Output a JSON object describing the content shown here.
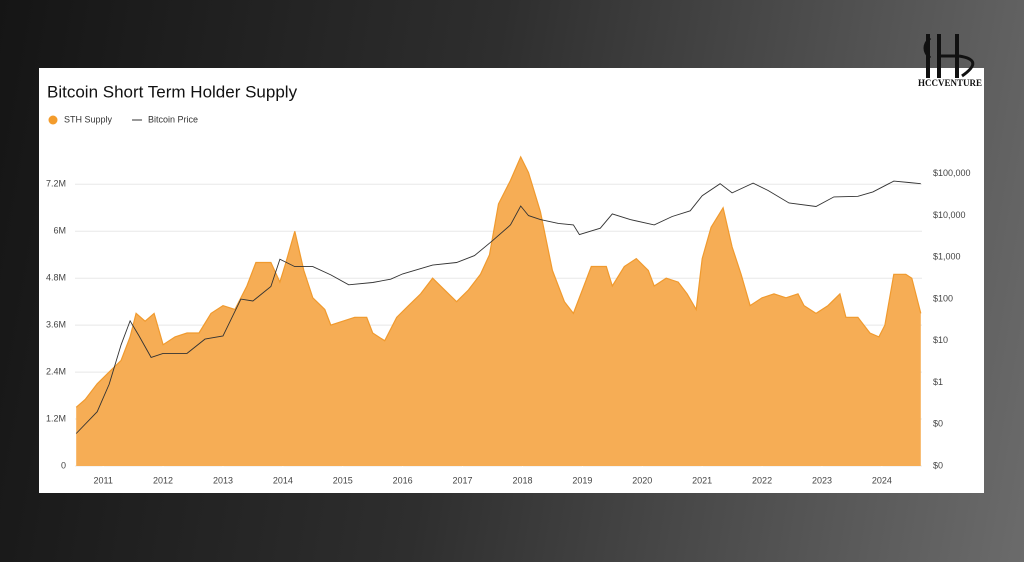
{
  "logo": "HCCVENTURE",
  "chart_data": {
    "type": "area",
    "title": "Bitcoin Short Term Holder Supply",
    "xlim": [
      2010.53,
      2024.67
    ],
    "xticks": [
      2011,
      2012,
      2013,
      2014,
      2015,
      2016,
      2017,
      2018,
      2019,
      2020,
      2021,
      2022,
      2023,
      2024
    ],
    "ylim": [
      0,
      8000000
    ],
    "yticks": [
      0,
      {
        "value": 1200000,
        "label": "1.2M"
      },
      {
        "value": 2400000,
        "label": "2.4M"
      },
      {
        "value": 3600000,
        "label": "3.6M"
      },
      {
        "value": 4800000,
        "label": "4.8M"
      },
      {
        "value": 6000000,
        "label": "6M"
      },
      {
        "value": 7200000,
        "label": "7.2M"
      }
    ],
    "y2lim": [
      0.01,
      316228
    ],
    "y2log": true,
    "y2ticks": [
      {
        "value": 0.01,
        "label": "$0"
      },
      {
        "value": 0.1,
        "label": "$0"
      },
      {
        "value": 1,
        "label": "$1"
      },
      {
        "value": 10,
        "label": "$10"
      },
      {
        "value": 100,
        "label": "$100"
      },
      {
        "value": 1000,
        "label": "$1,000"
      },
      {
        "value": 10000,
        "label": "$10,000"
      },
      {
        "value": 100000,
        "label": "$100,000"
      }
    ],
    "grid": true,
    "legend": "top-left",
    "series": [
      {
        "name": "STH Supply",
        "color": "#f6ad55",
        "kind": "area",
        "x": [
          2010.55,
          2010.7,
          2010.9,
          2011.1,
          2011.3,
          2011.45,
          2011.55,
          2011.7,
          2011.85,
          2012.0,
          2012.2,
          2012.4,
          2012.6,
          2012.8,
          2013.0,
          2013.2,
          2013.4,
          2013.55,
          2013.8,
          2013.95,
          2014.05,
          2014.2,
          2014.35,
          2014.5,
          2014.7,
          2014.8,
          2015.0,
          2015.2,
          2015.4,
          2015.5,
          2015.7,
          2015.9,
          2016.1,
          2016.3,
          2016.5,
          2016.7,
          2016.9,
          2017.1,
          2017.3,
          2017.45,
          2017.6,
          2017.8,
          2017.97,
          2018.1,
          2018.3,
          2018.5,
          2018.7,
          2018.85,
          2019.0,
          2019.15,
          2019.4,
          2019.5,
          2019.7,
          2019.9,
          2020.1,
          2020.2,
          2020.4,
          2020.6,
          2020.75,
          2020.9,
          2021.0,
          2021.15,
          2021.35,
          2021.5,
          2021.65,
          2021.8,
          2022.0,
          2022.2,
          2022.4,
          2022.6,
          2022.7,
          2022.9,
          2023.1,
          2023.3,
          2023.4,
          2023.6,
          2023.8,
          2023.95,
          2024.05,
          2024.2,
          2024.4,
          2024.5,
          2024.65
        ],
        "values": [
          1500000,
          1700000,
          2100000,
          2400000,
          2700000,
          3300000,
          3900000,
          3700000,
          3900000,
          3100000,
          3300000,
          3400000,
          3400000,
          3900000,
          4100000,
          4000000,
          4600000,
          5200000,
          5200000,
          4700000,
          5200000,
          6000000,
          5000000,
          4300000,
          4000000,
          3600000,
          3700000,
          3800000,
          3800000,
          3400000,
          3200000,
          3800000,
          4100000,
          4400000,
          4800000,
          4500000,
          4200000,
          4500000,
          4900000,
          5400000,
          6700000,
          7300000,
          7900000,
          7500000,
          6500000,
          5000000,
          4200000,
          3900000,
          4500000,
          5100000,
          5100000,
          4600000,
          5100000,
          5300000,
          5000000,
          4600000,
          4800000,
          4700000,
          4400000,
          4000000,
          5300000,
          6100000,
          6600000,
          5600000,
          4900000,
          4100000,
          4300000,
          4400000,
          4300000,
          4400000,
          4100000,
          3900000,
          4100000,
          4400000,
          3800000,
          3800000,
          3400000,
          3300000,
          3600000,
          4900000,
          4900000,
          4800000,
          3900000
        ]
      },
      {
        "name": "Bitcoin Price",
        "color": "#333333",
        "kind": "line",
        "axis": "y2",
        "x": [
          2010.55,
          2010.9,
          2011.1,
          2011.3,
          2011.45,
          2011.6,
          2011.8,
          2012.0,
          2012.4,
          2012.7,
          2013.0,
          2013.3,
          2013.5,
          2013.8,
          2013.95,
          2014.2,
          2014.5,
          2014.8,
          2015.1,
          2015.5,
          2015.8,
          2016.0,
          2016.5,
          2016.9,
          2017.2,
          2017.5,
          2017.8,
          2017.97,
          2018.1,
          2018.3,
          2018.6,
          2018.85,
          2018.95,
          2019.3,
          2019.5,
          2019.8,
          2020.2,
          2020.5,
          2020.8,
          2021.0,
          2021.3,
          2021.5,
          2021.85,
          2022.1,
          2022.45,
          2022.9,
          2023.2,
          2023.6,
          2023.85,
          2024.2,
          2024.45,
          2024.65
        ],
        "values": [
          0.06,
          0.2,
          0.9,
          8,
          30,
          13,
          4,
          5,
          5,
          11,
          13,
          100,
          90,
          200,
          900,
          600,
          600,
          380,
          220,
          250,
          300,
          400,
          650,
          750,
          1100,
          2500,
          6000,
          17000,
          10000,
          8000,
          6500,
          6000,
          3500,
          5000,
          11000,
          8000,
          6000,
          9500,
          13000,
          30000,
          58000,
          35000,
          60000,
          40000,
          20000,
          16500,
          28000,
          29000,
          37000,
          67000,
          62000,
          58000
        ]
      }
    ]
  }
}
